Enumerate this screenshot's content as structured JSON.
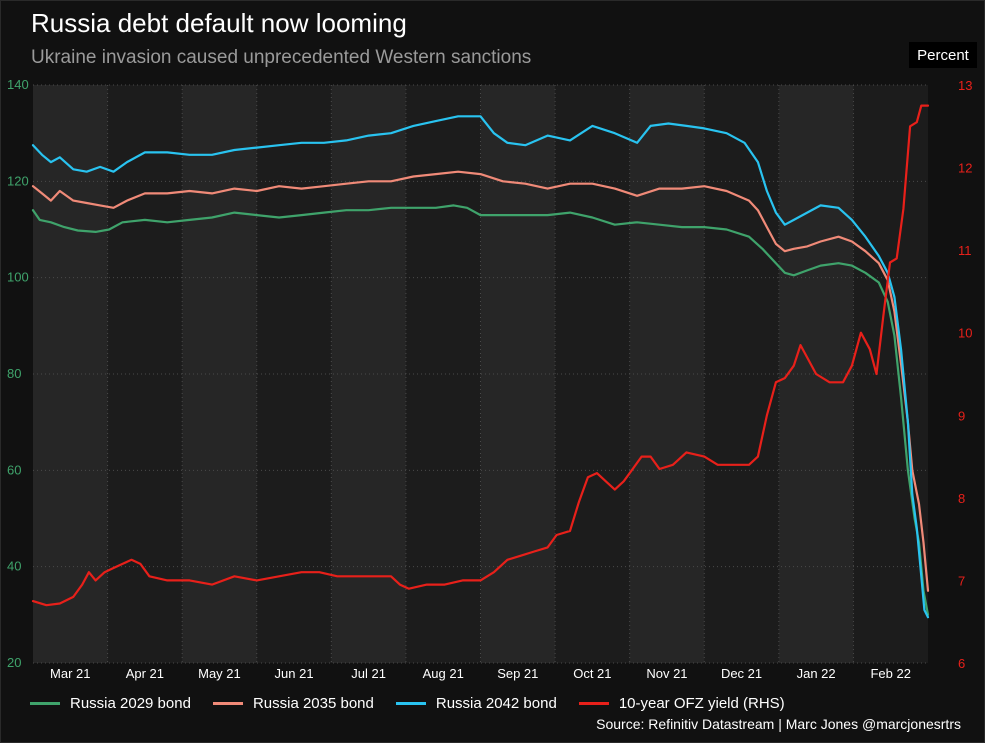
{
  "header": {
    "title": "Russia debt default now looming",
    "subtitle": "Ukraine invasion caused unprecedented Western sanctions",
    "units": "Percent"
  },
  "footer": {
    "source": "Source: Refinitiv Datastream | Marc Jones @marcjonesrtrs"
  },
  "colors": {
    "bond_2029": "#3fa36b",
    "bond_2035": "#f08a78",
    "bond_2042": "#29c3f0",
    "ofz": "#e8201a",
    "left_axis": "#3fa36b",
    "right_axis": "#e8201a",
    "plot_bg": "#262626",
    "band_bg": "#1c1c1c"
  },
  "chart_data": {
    "type": "line",
    "x_type": "monthly time axis",
    "x_tick_labels": [
      "Mar 21",
      "Apr 21",
      "May 21",
      "Jun 21",
      "Jul 21",
      "Aug 21",
      "Sep 21",
      "Oct 21",
      "Nov 21",
      "Dec 21",
      "Jan 22",
      "Feb 22"
    ],
    "y_left": {
      "ticks": [
        20,
        40,
        60,
        80,
        100,
        120,
        140
      ],
      "ylim": [
        20,
        140
      ]
    },
    "y_right": {
      "ticks": [
        6,
        7,
        8,
        9,
        10,
        11,
        12,
        13
      ],
      "ylim": [
        6,
        13
      ]
    },
    "grid": true,
    "legend_position": "bottom",
    "series": [
      {
        "name": "Russia 2029 bond",
        "axis": "left",
        "points": [
          [
            0.0,
            114.0
          ],
          [
            0.15,
            112.0
          ],
          [
            0.4,
            111.5
          ],
          [
            0.7,
            110.5
          ],
          [
            1.0,
            109.8
          ],
          [
            1.4,
            109.5
          ],
          [
            1.7,
            110.0
          ],
          [
            2.0,
            111.5
          ],
          [
            2.5,
            112.0
          ],
          [
            3.0,
            111.5
          ],
          [
            3.5,
            112.0
          ],
          [
            4.0,
            112.5
          ],
          [
            4.5,
            113.5
          ],
          [
            5.0,
            113.0
          ],
          [
            5.5,
            112.5
          ],
          [
            6.0,
            113.0
          ],
          [
            6.5,
            113.5
          ],
          [
            7.0,
            114.0
          ],
          [
            7.5,
            114.0
          ],
          [
            8.0,
            114.5
          ],
          [
            8.5,
            114.5
          ],
          [
            9.0,
            114.5
          ],
          [
            9.4,
            115.0
          ],
          [
            9.7,
            114.5
          ],
          [
            10.0,
            113.0
          ],
          [
            10.5,
            113.0
          ],
          [
            11.0,
            113.0
          ],
          [
            11.5,
            113.0
          ],
          [
            12.0,
            113.5
          ],
          [
            12.5,
            112.5
          ],
          [
            13.0,
            111.0
          ],
          [
            13.5,
            111.5
          ],
          [
            14.0,
            111.0
          ],
          [
            14.5,
            110.5
          ],
          [
            15.0,
            110.5
          ],
          [
            15.5,
            110.0
          ],
          [
            16.0,
            108.5
          ],
          [
            16.3,
            106.0
          ],
          [
            16.6,
            103.0
          ],
          [
            16.8,
            101.0
          ],
          [
            17.0,
            100.5
          ],
          [
            17.3,
            101.5
          ],
          [
            17.6,
            102.5
          ],
          [
            18.0,
            103.0
          ],
          [
            18.3,
            102.5
          ],
          [
            18.6,
            101.0
          ],
          [
            18.9,
            99.0
          ],
          [
            19.1,
            95.0
          ],
          [
            19.25,
            88.0
          ],
          [
            19.4,
            75.0
          ],
          [
            19.55,
            60.0
          ],
          [
            19.7,
            50.0
          ],
          [
            19.8,
            45.0
          ],
          [
            19.9,
            35.0
          ],
          [
            20.0,
            30.0
          ]
        ]
      },
      {
        "name": "Russia 2035 bond",
        "axis": "left",
        "points": [
          [
            0.0,
            119.0
          ],
          [
            0.2,
            117.5
          ],
          [
            0.4,
            116.0
          ],
          [
            0.6,
            118.0
          ],
          [
            0.9,
            116.0
          ],
          [
            1.2,
            115.5
          ],
          [
            1.5,
            115.0
          ],
          [
            1.8,
            114.5
          ],
          [
            2.1,
            116.0
          ],
          [
            2.5,
            117.5
          ],
          [
            3.0,
            117.5
          ],
          [
            3.5,
            118.0
          ],
          [
            4.0,
            117.5
          ],
          [
            4.5,
            118.5
          ],
          [
            5.0,
            118.0
          ],
          [
            5.5,
            119.0
          ],
          [
            6.0,
            118.5
          ],
          [
            6.5,
            119.0
          ],
          [
            7.0,
            119.5
          ],
          [
            7.5,
            120.0
          ],
          [
            8.0,
            120.0
          ],
          [
            8.5,
            121.0
          ],
          [
            9.0,
            121.5
          ],
          [
            9.5,
            122.0
          ],
          [
            10.0,
            121.5
          ],
          [
            10.5,
            120.0
          ],
          [
            11.0,
            119.5
          ],
          [
            11.5,
            118.5
          ],
          [
            12.0,
            119.5
          ],
          [
            12.5,
            119.5
          ],
          [
            13.0,
            118.5
          ],
          [
            13.5,
            117.0
          ],
          [
            14.0,
            118.5
          ],
          [
            14.5,
            118.5
          ],
          [
            15.0,
            119.0
          ],
          [
            15.5,
            118.0
          ],
          [
            16.0,
            116.0
          ],
          [
            16.2,
            114.0
          ],
          [
            16.4,
            110.5
          ],
          [
            16.6,
            107.0
          ],
          [
            16.8,
            105.5
          ],
          [
            17.0,
            106.0
          ],
          [
            17.3,
            106.5
          ],
          [
            17.6,
            107.5
          ],
          [
            18.0,
            108.5
          ],
          [
            18.3,
            107.5
          ],
          [
            18.6,
            105.5
          ],
          [
            18.9,
            103.0
          ],
          [
            19.1,
            99.5
          ],
          [
            19.25,
            93.0
          ],
          [
            19.4,
            82.0
          ],
          [
            19.55,
            70.0
          ],
          [
            19.65,
            60.0
          ],
          [
            19.8,
            53.0
          ],
          [
            19.9,
            45.0
          ],
          [
            20.0,
            35.0
          ]
        ]
      },
      {
        "name": "Russia 2042 bond",
        "axis": "left",
        "points": [
          [
            0.0,
            127.5
          ],
          [
            0.2,
            125.5
          ],
          [
            0.4,
            124.0
          ],
          [
            0.6,
            125.0
          ],
          [
            0.9,
            122.5
          ],
          [
            1.2,
            122.0
          ],
          [
            1.5,
            123.0
          ],
          [
            1.8,
            122.0
          ],
          [
            2.1,
            124.0
          ],
          [
            2.5,
            126.0
          ],
          [
            3.0,
            126.0
          ],
          [
            3.5,
            125.5
          ],
          [
            4.0,
            125.5
          ],
          [
            4.5,
            126.5
          ],
          [
            5.0,
            127.0
          ],
          [
            5.5,
            127.5
          ],
          [
            6.0,
            128.0
          ],
          [
            6.5,
            128.0
          ],
          [
            7.0,
            128.5
          ],
          [
            7.5,
            129.5
          ],
          [
            8.0,
            130.0
          ],
          [
            8.5,
            131.5
          ],
          [
            9.0,
            132.5
          ],
          [
            9.5,
            133.5
          ],
          [
            10.0,
            133.5
          ],
          [
            10.3,
            130.0
          ],
          [
            10.6,
            128.0
          ],
          [
            11.0,
            127.5
          ],
          [
            11.5,
            129.5
          ],
          [
            12.0,
            128.5
          ],
          [
            12.5,
            131.5
          ],
          [
            13.0,
            130.0
          ],
          [
            13.5,
            128.0
          ],
          [
            13.8,
            131.5
          ],
          [
            14.2,
            132.0
          ],
          [
            14.6,
            131.5
          ],
          [
            15.0,
            131.0
          ],
          [
            15.5,
            130.0
          ],
          [
            15.9,
            128.0
          ],
          [
            16.2,
            124.0
          ],
          [
            16.4,
            118.0
          ],
          [
            16.6,
            113.5
          ],
          [
            16.8,
            111.0
          ],
          [
            17.0,
            112.0
          ],
          [
            17.3,
            113.5
          ],
          [
            17.6,
            115.0
          ],
          [
            18.0,
            114.5
          ],
          [
            18.3,
            112.0
          ],
          [
            18.6,
            108.5
          ],
          [
            18.9,
            104.5
          ],
          [
            19.1,
            101.0
          ],
          [
            19.25,
            96.0
          ],
          [
            19.4,
            85.0
          ],
          [
            19.55,
            70.0
          ],
          [
            19.65,
            55.0
          ],
          [
            19.75,
            48.0
          ],
          [
            19.85,
            38.0
          ],
          [
            19.92,
            31.0
          ],
          [
            20.0,
            29.5
          ]
        ]
      },
      {
        "name": "10-year OFZ yield (RHS)",
        "axis": "right",
        "points": [
          [
            0.0,
            6.75
          ],
          [
            0.3,
            6.7
          ],
          [
            0.6,
            6.72
          ],
          [
            0.9,
            6.8
          ],
          [
            1.1,
            6.95
          ],
          [
            1.25,
            7.1
          ],
          [
            1.4,
            7.0
          ],
          [
            1.6,
            7.1
          ],
          [
            1.8,
            7.15
          ],
          [
            2.0,
            7.2
          ],
          [
            2.2,
            7.25
          ],
          [
            2.4,
            7.2
          ],
          [
            2.6,
            7.05
          ],
          [
            3.0,
            7.0
          ],
          [
            3.5,
            7.0
          ],
          [
            4.0,
            6.95
          ],
          [
            4.5,
            7.05
          ],
          [
            5.0,
            7.0
          ],
          [
            5.5,
            7.05
          ],
          [
            6.0,
            7.1
          ],
          [
            6.4,
            7.1
          ],
          [
            6.8,
            7.05
          ],
          [
            7.2,
            7.05
          ],
          [
            7.6,
            7.05
          ],
          [
            8.0,
            7.05
          ],
          [
            8.2,
            6.95
          ],
          [
            8.4,
            6.9
          ],
          [
            8.8,
            6.95
          ],
          [
            9.2,
            6.95
          ],
          [
            9.6,
            7.0
          ],
          [
            10.0,
            7.0
          ],
          [
            10.3,
            7.1
          ],
          [
            10.6,
            7.25
          ],
          [
            10.9,
            7.3
          ],
          [
            11.2,
            7.35
          ],
          [
            11.5,
            7.4
          ],
          [
            11.7,
            7.55
          ],
          [
            12.0,
            7.6
          ],
          [
            12.2,
            7.95
          ],
          [
            12.4,
            8.25
          ],
          [
            12.6,
            8.3
          ],
          [
            12.8,
            8.2
          ],
          [
            13.0,
            8.1
          ],
          [
            13.2,
            8.2
          ],
          [
            13.4,
            8.35
          ],
          [
            13.6,
            8.5
          ],
          [
            13.8,
            8.5
          ],
          [
            14.0,
            8.35
          ],
          [
            14.3,
            8.4
          ],
          [
            14.6,
            8.55
          ],
          [
            15.0,
            8.5
          ],
          [
            15.3,
            8.4
          ],
          [
            15.6,
            8.4
          ],
          [
            16.0,
            8.4
          ],
          [
            16.2,
            8.5
          ],
          [
            16.4,
            9.0
          ],
          [
            16.6,
            9.4
          ],
          [
            16.8,
            9.45
          ],
          [
            17.0,
            9.6
          ],
          [
            17.15,
            9.85
          ],
          [
            17.3,
            9.7
          ],
          [
            17.5,
            9.5
          ],
          [
            17.8,
            9.4
          ],
          [
            18.1,
            9.4
          ],
          [
            18.3,
            9.6
          ],
          [
            18.5,
            10.0
          ],
          [
            18.7,
            9.8
          ],
          [
            18.85,
            9.5
          ],
          [
            19.0,
            10.2
          ],
          [
            19.15,
            10.85
          ],
          [
            19.3,
            10.9
          ],
          [
            19.45,
            11.5
          ],
          [
            19.6,
            12.5
          ],
          [
            19.75,
            12.55
          ],
          [
            19.85,
            12.75
          ],
          [
            20.0,
            12.75
          ]
        ]
      }
    ]
  }
}
